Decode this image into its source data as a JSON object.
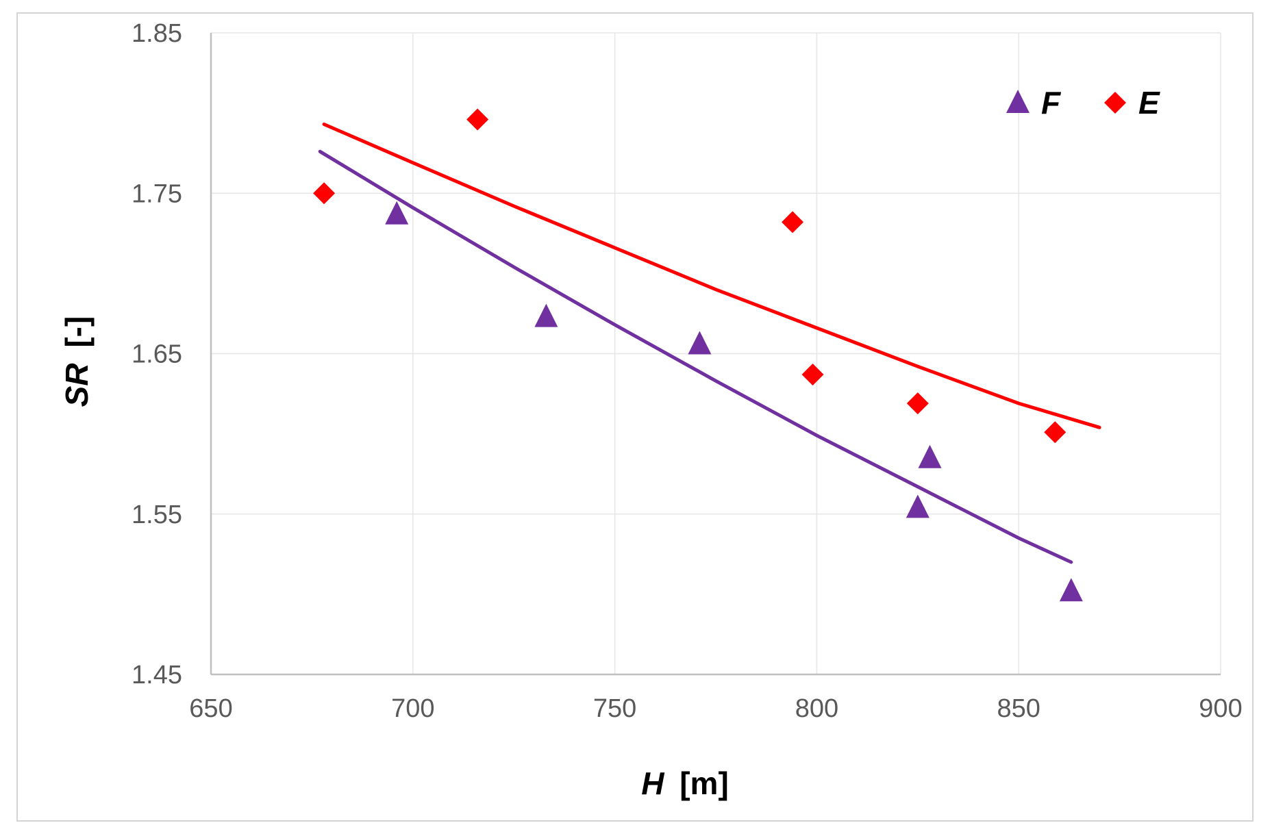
{
  "chart_data": {
    "type": "scatter",
    "title": "",
    "xlabel": {
      "var": "H",
      "unit": "[m]"
    },
    "ylabel": {
      "var": "SR",
      "unit": "[-]"
    },
    "xlim": [
      650,
      900
    ],
    "ylim": [
      1.45,
      1.85
    ],
    "xticks": [
      "650",
      "700",
      "750",
      "800",
      "850",
      "900"
    ],
    "yticks": [
      "1.45",
      "1.55",
      "1.65",
      "1.75",
      "1.85"
    ],
    "grid": true,
    "legend_position": "top-right",
    "series": [
      {
        "name": "F",
        "marker": "triangle",
        "color": "#7030a0",
        "points": [
          {
            "x": 696,
            "y": 1.737
          },
          {
            "x": 733,
            "y": 1.673
          },
          {
            "x": 771,
            "y": 1.656
          },
          {
            "x": 825,
            "y": 1.554
          },
          {
            "x": 828,
            "y": 1.585
          },
          {
            "x": 863,
            "y": 1.502
          }
        ],
        "trend": [
          {
            "x": 677,
            "y": 1.776
          },
          {
            "x": 700,
            "y": 1.741
          },
          {
            "x": 725,
            "y": 1.704
          },
          {
            "x": 750,
            "y": 1.668
          },
          {
            "x": 775,
            "y": 1.633
          },
          {
            "x": 800,
            "y": 1.599
          },
          {
            "x": 825,
            "y": 1.567
          },
          {
            "x": 850,
            "y": 1.535
          },
          {
            "x": 863,
            "y": 1.52
          }
        ]
      },
      {
        "name": "E",
        "marker": "diamond",
        "color": "#ff0000",
        "points": [
          {
            "x": 678,
            "y": 1.75
          },
          {
            "x": 716,
            "y": 1.796
          },
          {
            "x": 794,
            "y": 1.732
          },
          {
            "x": 799,
            "y": 1.637
          },
          {
            "x": 825,
            "y": 1.619
          },
          {
            "x": 859,
            "y": 1.601
          }
        ],
        "trend": [
          {
            "x": 678,
            "y": 1.793
          },
          {
            "x": 700,
            "y": 1.769
          },
          {
            "x": 725,
            "y": 1.742
          },
          {
            "x": 750,
            "y": 1.716
          },
          {
            "x": 775,
            "y": 1.69
          },
          {
            "x": 800,
            "y": 1.666
          },
          {
            "x": 825,
            "y": 1.642
          },
          {
            "x": 850,
            "y": 1.619
          },
          {
            "x": 870,
            "y": 1.604
          }
        ]
      }
    ]
  }
}
